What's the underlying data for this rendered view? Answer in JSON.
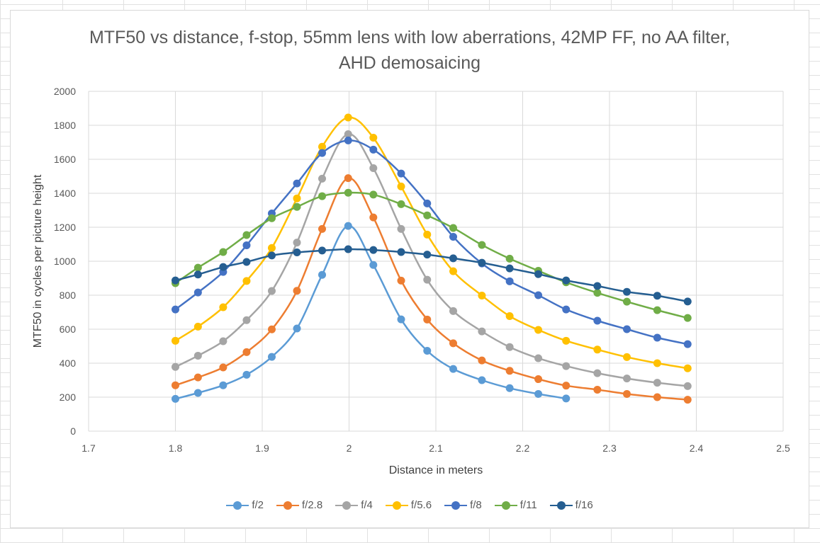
{
  "chart_data": {
    "type": "line",
    "title": "MTF50 vs distance, f-stop, 55mm lens with low aberrations, 42MP FF, no AA filter, AHD demosaicing",
    "xlabel": "Distance in meters",
    "ylabel": "MTF50 in cycles per picture height",
    "xlim": [
      1.7,
      2.5
    ],
    "ylim": [
      0,
      2000
    ],
    "x_ticks": [
      "1.7",
      "1.8",
      "1.9",
      "2",
      "2.1",
      "2.2",
      "2.3",
      "2.4",
      "2.5"
    ],
    "y_ticks": [
      "0",
      "200",
      "400",
      "600",
      "800",
      "1000",
      "1200",
      "1400",
      "1600",
      "1800",
      "2000"
    ],
    "grid": true,
    "legend_position": "bottom",
    "series": [
      {
        "name": "f/2",
        "color": "#5B9BD5",
        "x": [
          1.8,
          1.826,
          1.855,
          1.882,
          1.911,
          1.94,
          1.969,
          1.999,
          2.028,
          2.06,
          2.09,
          2.12,
          2.153,
          2.185,
          2.218,
          2.25
        ],
        "y": [
          190,
          225,
          270,
          332,
          437,
          604,
          920,
          1208,
          978,
          658,
          473,
          366,
          300,
          253,
          219,
          192
        ]
      },
      {
        "name": "f/2.8",
        "color": "#ED7D31",
        "x": [
          1.8,
          1.826,
          1.855,
          1.882,
          1.911,
          1.94,
          1.969,
          1.999,
          2.028,
          2.06,
          2.09,
          2.12,
          2.153,
          2.185,
          2.218,
          2.25,
          2.286,
          2.32,
          2.355,
          2.39
        ],
        "y": [
          270,
          316,
          375,
          465,
          599,
          826,
          1190,
          1489,
          1258,
          886,
          657,
          517,
          416,
          355,
          306,
          268,
          244,
          219,
          200,
          185
        ]
      },
      {
        "name": "f/4",
        "color": "#A5A5A5",
        "x": [
          1.8,
          1.826,
          1.855,
          1.882,
          1.911,
          1.94,
          1.969,
          1.999,
          2.028,
          2.06,
          2.09,
          2.12,
          2.153,
          2.185,
          2.218,
          2.25,
          2.286,
          2.32,
          2.355,
          2.39
        ],
        "y": [
          378,
          444,
          529,
          653,
          825,
          1110,
          1486,
          1748,
          1548,
          1190,
          891,
          707,
          587,
          495,
          429,
          383,
          341,
          310,
          285,
          265
        ]
      },
      {
        "name": "f/5.6",
        "color": "#FFC000",
        "x": [
          1.8,
          1.826,
          1.855,
          1.882,
          1.911,
          1.94,
          1.969,
          1.999,
          2.028,
          2.06,
          2.09,
          2.12,
          2.153,
          2.185,
          2.218,
          2.25,
          2.286,
          2.32,
          2.355,
          2.39
        ],
        "y": [
          532,
          615,
          729,
          884,
          1078,
          1370,
          1674,
          1846,
          1727,
          1440,
          1157,
          941,
          798,
          677,
          596,
          532,
          480,
          436,
          400,
          370
        ]
      },
      {
        "name": "f/8",
        "color": "#4472C4",
        "x": [
          1.8,
          1.826,
          1.855,
          1.882,
          1.911,
          1.94,
          1.969,
          1.999,
          2.028,
          2.06,
          2.09,
          2.12,
          2.153,
          2.185,
          2.218,
          2.25,
          2.286,
          2.32,
          2.355,
          2.39
        ],
        "y": [
          716,
          816,
          937,
          1094,
          1281,
          1458,
          1637,
          1711,
          1657,
          1516,
          1340,
          1144,
          987,
          882,
          800,
          716,
          650,
          600,
          550,
          512
        ]
      },
      {
        "name": "f/11",
        "color": "#70AD47",
        "x": [
          1.8,
          1.826,
          1.855,
          1.882,
          1.911,
          1.94,
          1.969,
          1.999,
          2.028,
          2.06,
          2.09,
          2.12,
          2.153,
          2.185,
          2.218,
          2.25,
          2.286,
          2.32,
          2.355,
          2.39
        ],
        "y": [
          871,
          962,
          1054,
          1154,
          1253,
          1320,
          1383,
          1403,
          1392,
          1336,
          1270,
          1196,
          1096,
          1015,
          944,
          876,
          814,
          762,
          712,
          666
        ]
      },
      {
        "name": "f/16",
        "color": "#255E91",
        "x": [
          1.8,
          1.826,
          1.855,
          1.882,
          1.911,
          1.94,
          1.969,
          1.999,
          2.028,
          2.06,
          2.09,
          2.12,
          2.153,
          2.185,
          2.218,
          2.25,
          2.286,
          2.32,
          2.355,
          2.39
        ],
        "y": [
          887,
          922,
          966,
          996,
          1034,
          1052,
          1063,
          1071,
          1066,
          1054,
          1039,
          1017,
          991,
          958,
          924,
          887,
          854,
          820,
          797,
          763
        ]
      }
    ]
  }
}
